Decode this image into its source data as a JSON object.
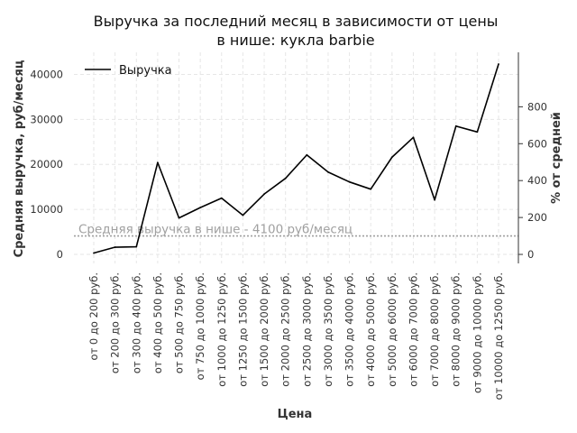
{
  "chart_data": {
    "type": "line",
    "title_lines": [
      "Выручка за последний месяц в зависимости от цены",
      "в нише: кукла barbie"
    ],
    "xlabel": "Цена",
    "ylabel": "Средняя выручка, руб/месяц",
    "ylabel_right": "% от средней",
    "categories": [
      "от 0 до 200 руб.",
      "от 200 до 300 руб.",
      "от 300 до 400 руб.",
      "от 400 до 500 руб.",
      "от 500 до 750 руб.",
      "от 750 до 1000 руб.",
      "от 1000 до 1250 руб.",
      "от 1250 до 1500 руб.",
      "от 1500 до 2000 руб.",
      "от 2000 до 2500 руб.",
      "от 2500 до 3000 руб.",
      "от 3000 до 3500 руб.",
      "от 3500 до 4000 руб.",
      "от 4000 до 5000 руб.",
      "от 5000 до 6000 руб.",
      "от 6000 до 7000 руб.",
      "от 7000 до 8000 руб.",
      "от 8000 до 9000 руб.",
      "от 9000 до 10000 руб.",
      "от 10000 до 12500 руб."
    ],
    "series": [
      {
        "name": "Выручка",
        "color": "#000000",
        "values": [
          300,
          1600,
          1700,
          20400,
          8100,
          10400,
          12500,
          8700,
          13400,
          16900,
          22100,
          18300,
          16100,
          14500,
          21600,
          26000,
          12100,
          28500,
          27200,
          42300
        ]
      }
    ],
    "ylim": [
      -2000,
      44900
    ],
    "yticks": [
      0,
      10000,
      20000,
      30000,
      40000
    ],
    "yticks_right": [
      0,
      200,
      400,
      600,
      800
    ],
    "right_axis_reference": 4100,
    "average_line": {
      "value": 4100,
      "label": "Средняя выручка в нише - 4100 руб/месяц",
      "color": "#a0a0a0"
    },
    "legend": {
      "position": "top-left"
    },
    "grid": true
  }
}
